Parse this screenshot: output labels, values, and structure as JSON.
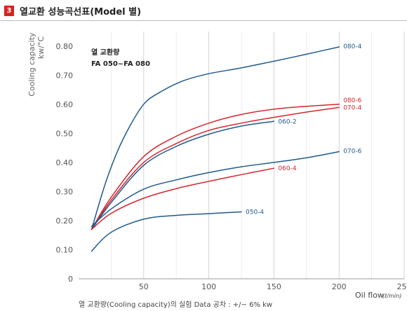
{
  "header": {
    "badge": "3",
    "title": "열교환 성능곡선표(Model 별)"
  },
  "note": "열 교환량(Cooling capacity)의 실험 Data 공차 : +/~ 6% kw",
  "chart_data": {
    "type": "line",
    "title": "열 교환량",
    "subtitle": "FA 050~FA 080",
    "ylabel": "Cooling capacity",
    "yunit": "kw/°C",
    "xlabel": "Oil flow",
    "xunit": "(ℓ/min)",
    "xlim": [
      0,
      250
    ],
    "ylim": [
      0,
      0.85
    ],
    "xticks": [
      "50",
      "100",
      "150",
      "200",
      "250"
    ],
    "yticks": [
      "0",
      "0.10",
      "0.20",
      "0.30",
      "0.40",
      "0.50",
      "0.60",
      "0.70",
      "0.80"
    ],
    "grid": "vertical",
    "colors": {
      "blue": "#1f5a8c",
      "red": "#d6262e",
      "grid": "#c9c9c9"
    },
    "series": [
      {
        "name": "080-4",
        "color": "#1f5a8c",
        "x": [
          10,
          20,
          30,
          40,
          50,
          60,
          80,
          100,
          125,
          150,
          175,
          200
        ],
        "y": [
          0.17,
          0.32,
          0.44,
          0.53,
          0.6,
          0.635,
          0.68,
          0.705,
          0.725,
          0.748,
          0.772,
          0.797
        ]
      },
      {
        "name": "080-6",
        "color": "#d6262e",
        "x": [
          10,
          25,
          50,
          75,
          100,
          125,
          150,
          175,
          200
        ],
        "y": [
          0.17,
          0.28,
          0.42,
          0.49,
          0.535,
          0.565,
          0.583,
          0.593,
          0.6
        ]
      },
      {
        "name": "070-4",
        "color": "#d6262e",
        "x": [
          10,
          25,
          50,
          75,
          100,
          125,
          150,
          175,
          200
        ],
        "y": [
          0.17,
          0.27,
          0.4,
          0.465,
          0.51,
          0.535,
          0.555,
          0.573,
          0.589
        ]
      },
      {
        "name": "060-2",
        "color": "#1f5a8c",
        "x": [
          10,
          25,
          50,
          75,
          100,
          125,
          150
        ],
        "y": [
          0.17,
          0.262,
          0.39,
          0.455,
          0.497,
          0.525,
          0.541
        ]
      },
      {
        "name": "070-6",
        "color": "#1f5a8c",
        "x": [
          10,
          25,
          50,
          75,
          100,
          125,
          150,
          175,
          200
        ],
        "y": [
          0.18,
          0.24,
          0.308,
          0.34,
          0.365,
          0.385,
          0.4,
          0.416,
          0.437
        ]
      },
      {
        "name": "060-4",
        "color": "#d6262e",
        "x": [
          10,
          25,
          50,
          75,
          100,
          125,
          150
        ],
        "y": [
          0.17,
          0.225,
          0.277,
          0.31,
          0.335,
          0.358,
          0.38
        ]
      },
      {
        "name": "050-4",
        "color": "#1f5a8c",
        "x": [
          10,
          25,
          50,
          75,
          100,
          125
        ],
        "y": [
          0.095,
          0.16,
          0.205,
          0.218,
          0.224,
          0.23
        ]
      }
    ]
  }
}
